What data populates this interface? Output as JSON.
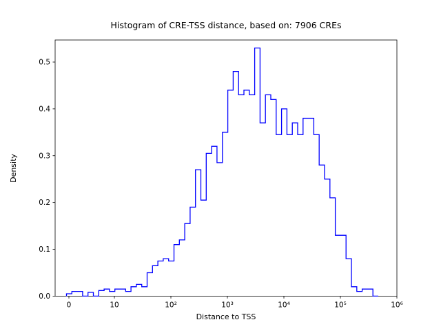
{
  "chart_data": {
    "type": "bar",
    "subtype": "step-histogram",
    "title": "Histogram of CRE-TSS distance, based on: 7906 CREs",
    "xlabel": "Distance to TSS",
    "ylabel": "Density",
    "x_scale": "symlog",
    "x_tick_labels": [
      "0",
      "10",
      "10²",
      "10³",
      "10⁴",
      "10⁵",
      "10⁶"
    ],
    "y_tick_labels": [
      "0.0",
      "0.1",
      "0.2",
      "0.3",
      "0.4",
      "0.5"
    ],
    "y_tick_values": [
      0,
      0.1,
      0.2,
      0.3,
      0.4,
      0.5
    ],
    "ylim": [
      0,
      0.547
    ],
    "line_color": "#0000ff",
    "axis_color": "#000000",
    "bin_heights": [
      0.005,
      0.01,
      0.01,
      0,
      0.008,
      0,
      0.012,
      0.015,
      0.01,
      0.015,
      0.015,
      0.01,
      0.02,
      0.025,
      0.02,
      0.05,
      0.065,
      0.075,
      0.08,
      0.075,
      0.11,
      0.12,
      0.155,
      0.19,
      0.27,
      0.205,
      0.305,
      0.32,
      0.285,
      0.35,
      0.44,
      0.48,
      0.43,
      0.44,
      0.43,
      0.53,
      0.37,
      0.43,
      0.42,
      0.345,
      0.4,
      0.345,
      0.37,
      0.345,
      0.38,
      0.38,
      0.345,
      0.28,
      0.25,
      0.21,
      0.13,
      0.13,
      0.08,
      0.02,
      0.01,
      0.015,
      0.015,
      0
    ]
  }
}
